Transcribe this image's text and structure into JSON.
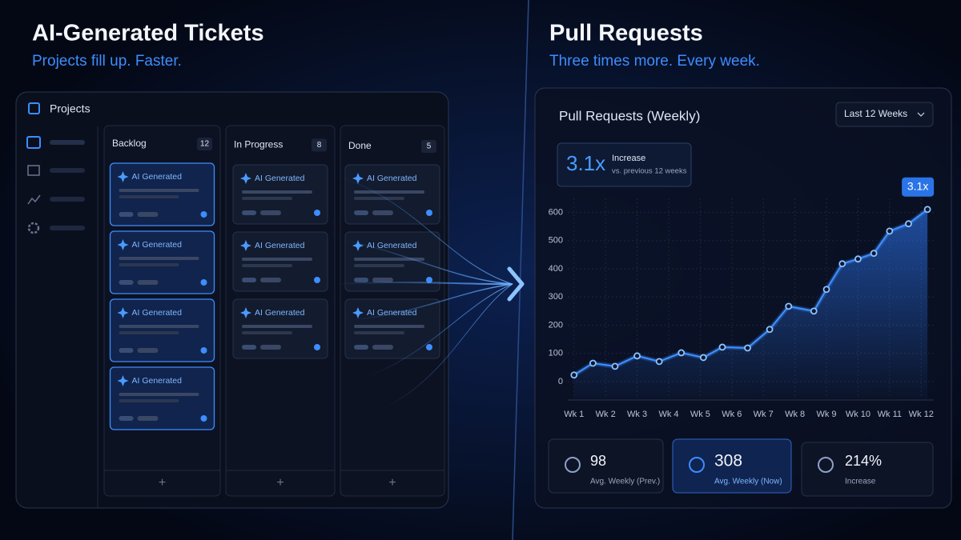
{
  "left": {
    "title": "AI-Generated Tickets",
    "subtitle": "Projects fill up. Faster.",
    "app_title": "Projects",
    "add_button": "+",
    "columns": [
      {
        "name": "Backlog",
        "count": 12,
        "cards": [
          "AI Generated",
          "AI Generated",
          "AI Generated",
          "AI Generated"
        ]
      },
      {
        "name": "In Progress",
        "count": 8,
        "cards": [
          "AI Generated",
          "AI Generated",
          "AI Generated"
        ]
      },
      {
        "name": "Done",
        "count": 5,
        "cards": [
          "AI Generated",
          "AI Generated",
          "AI Generated"
        ]
      }
    ]
  },
  "right": {
    "title": "Pull Requests",
    "subtitle": "Three times more. Every week.",
    "stats": [
      {
        "value": "98",
        "label": "Avg. Weekly (Prev.)"
      },
      {
        "value": "308",
        "label": "Avg. Weekly (Now)"
      },
      {
        "value": "214%",
        "label": "Increase"
      }
    ]
  },
  "chart_data": {
    "type": "line",
    "title": "Pull Requests (Weekly)",
    "range_select": "Last 12 Weeks",
    "highlight": {
      "value": "3.1x",
      "label": "Increase",
      "note": "vs. previous 12 weeks"
    },
    "annotation": "3.1x",
    "x": [
      1.0,
      1.6,
      2.3,
      3.0,
      3.7,
      4.4,
      5.1,
      5.7,
      6.5,
      7.2,
      7.8,
      8.6,
      9.0,
      9.5,
      10.0,
      10.5,
      11.0,
      11.6,
      12.2
    ],
    "values": [
      23,
      65,
      54,
      91,
      71,
      102,
      85,
      122,
      119,
      185,
      267,
      250,
      327,
      418,
      435,
      455,
      534,
      560,
      611
    ],
    "color": "#3d8dff",
    "xlim": [
      0.6,
      12.4
    ],
    "xticks": [
      {
        "value": 1,
        "label": "Wk 1"
      },
      {
        "value": 2,
        "label": "Wk 2"
      },
      {
        "value": 3,
        "label": "Wk 3"
      },
      {
        "value": 4,
        "label": "Wk 4"
      },
      {
        "value": 5,
        "label": "Wk 5"
      },
      {
        "value": 6,
        "label": "Wk 6"
      },
      {
        "value": 7,
        "label": "Wk 7"
      },
      {
        "value": 8,
        "label": "Wk 8"
      },
      {
        "value": 9,
        "label": "Wk 9"
      },
      {
        "value": 10,
        "label": "Wk 10"
      },
      {
        "value": 11,
        "label": "Wk 11"
      },
      {
        "value": 12,
        "label": "Wk 12"
      }
    ],
    "ylim": [
      -60,
      650
    ],
    "yticks": [
      0,
      100,
      200,
      300,
      400,
      500,
      600
    ],
    "grid": true
  }
}
